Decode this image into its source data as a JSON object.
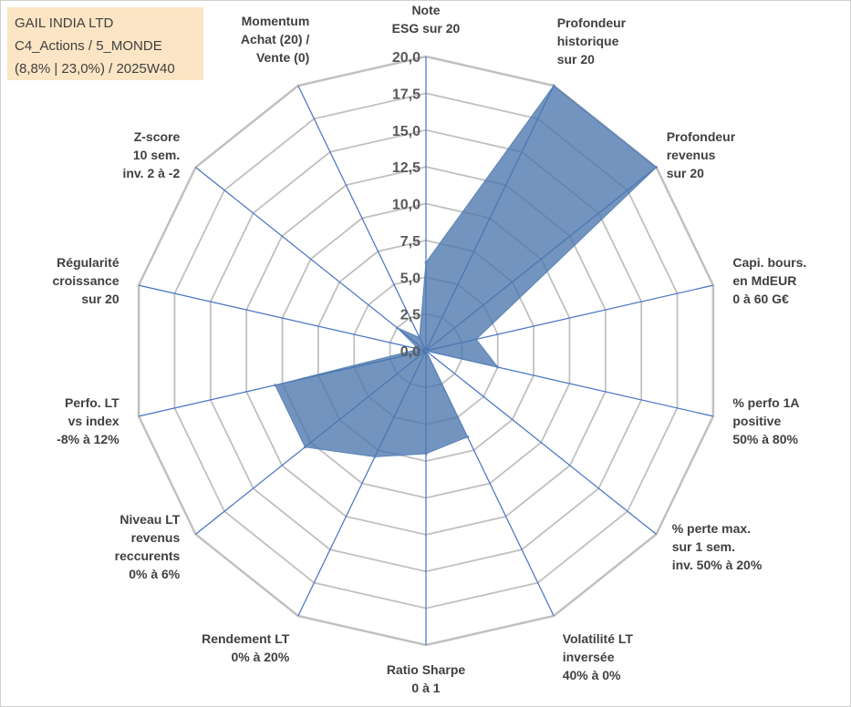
{
  "info_box": {
    "line1": "GAIL INDIA LTD",
    "line2": "C4_Actions / 5_MONDE",
    "line3": "(8,8% | 23,0%) / 2025W40"
  },
  "chart_data": {
    "type": "radar",
    "title": "",
    "axes": [
      [
        "Note",
        "ESG sur 20"
      ],
      [
        "Profondeur",
        "historique",
        "sur 20"
      ],
      [
        "Profondeur",
        "revenus",
        "sur 20"
      ],
      [
        "Capi. bours.",
        "en MdEUR",
        "0 à 60 G€"
      ],
      [
        "% perfo 1A",
        "positive",
        "50% à 80%"
      ],
      [
        "% perte max.",
        "sur 1 sem.",
        "inv. 50% à 20%"
      ],
      [
        "Volatilité LT",
        "inversée",
        "40% à 0%"
      ],
      [
        "Ratio Sharpe",
        "0 à 1"
      ],
      [
        "Rendement LT",
        "0% à 20%"
      ],
      [
        "Niveau LT",
        "revenus",
        "reccurents",
        "0% à 6%"
      ],
      [
        "Perfo. LT",
        "vs index",
        "-8% à 12%"
      ],
      [
        "Régularité",
        "croissance",
        "sur 20"
      ],
      [
        "Z-score",
        "10 sem.",
        "inv. 2 à -2"
      ],
      [
        "Momentum",
        "Achat (20) /",
        "Vente (0)"
      ]
    ],
    "series": [
      {
        "values": [
          6.0,
          20.0,
          20.0,
          3.5,
          5.0,
          0.0,
          6.5,
          7.0,
          8.0,
          10.5,
          10.5,
          0.5,
          2.5,
          1.0
        ]
      }
    ],
    "r_range": [
      0,
      20
    ],
    "ticks": [
      "0,0",
      "2,5",
      "5,0",
      "7,5",
      "10,0",
      "12,5",
      "15,0",
      "17,5",
      "20,0"
    ],
    "tick_values": [
      0,
      2.5,
      5,
      7.5,
      10,
      12.5,
      15,
      17.5,
      20
    ],
    "grid": true,
    "colors": {
      "fill": "#4a76ad",
      "stroke": "#5b84b8",
      "grid": "#c0c0c0",
      "spoke": "#4472c4"
    }
  }
}
